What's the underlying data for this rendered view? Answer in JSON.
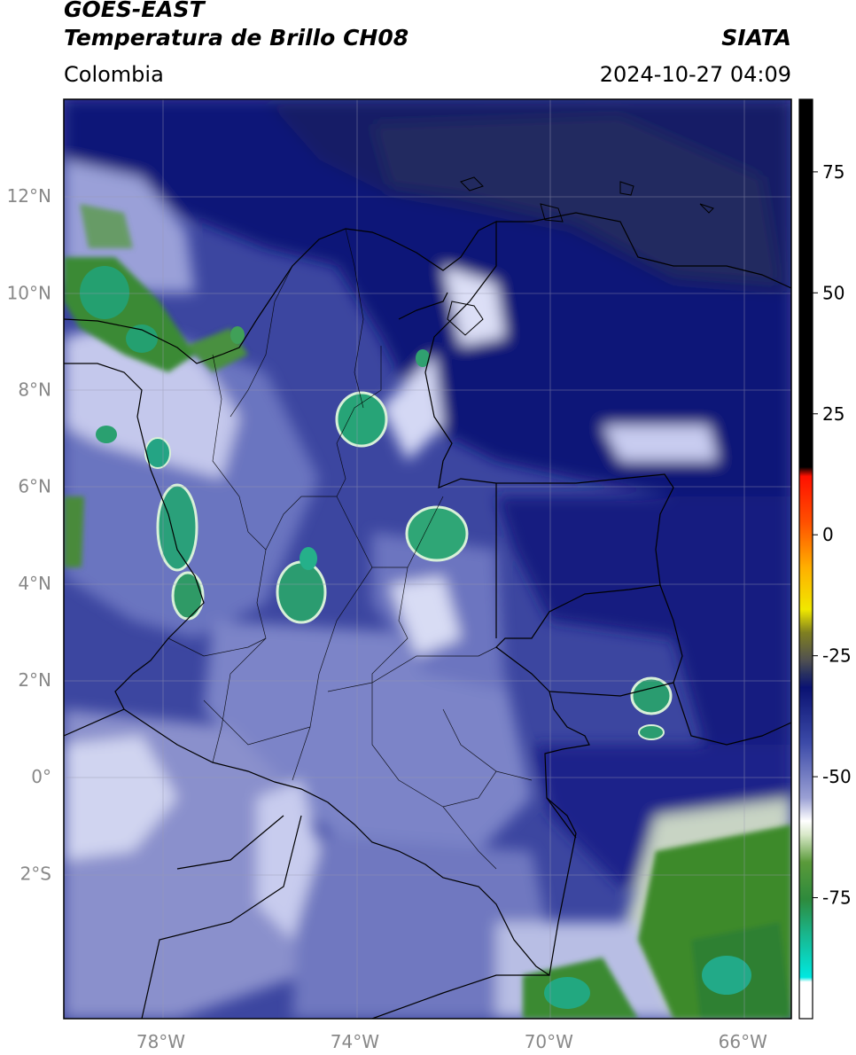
{
  "header": {
    "satellite": "GOES-EAST",
    "product": "Temperatura de Brillo CH08",
    "brand": "SIATA",
    "region": "Colombia",
    "datetime": "2024-10-27 04:09"
  },
  "map": {
    "lon_range": [
      -80,
      -65
    ],
    "lat_range": [
      -5,
      14
    ],
    "lat_ticks": [
      {
        "value": 12,
        "label": "12°N"
      },
      {
        "value": 10,
        "label": "10°N"
      },
      {
        "value": 8,
        "label": "8°N"
      },
      {
        "value": 6,
        "label": "6°N"
      },
      {
        "value": 4,
        "label": "4°N"
      },
      {
        "value": 2,
        "label": "2°N"
      },
      {
        "value": 0,
        "label": "0°"
      },
      {
        "value": -2,
        "label": "2°S"
      }
    ],
    "lon_ticks": [
      {
        "value": -78,
        "label": "78°W"
      },
      {
        "value": -74,
        "label": "74°W"
      },
      {
        "value": -70,
        "label": "70°W"
      },
      {
        "value": -66,
        "label": "66°W"
      }
    ],
    "grid": true
  },
  "colorbar": {
    "range": [
      -100,
      90
    ],
    "ticks": [
      {
        "value": 75,
        "label": "75"
      },
      {
        "value": 50,
        "label": "50"
      },
      {
        "value": 25,
        "label": "25"
      },
      {
        "value": 0,
        "label": "0"
      },
      {
        "value": -25,
        "label": "-25"
      },
      {
        "value": -50,
        "label": "-50"
      },
      {
        "value": -75,
        "label": "-75"
      }
    ],
    "colors": {
      "warm": "#000000",
      "red": "#ff2000",
      "orange": "#ff9000",
      "yellow": "#f0e800",
      "olive": "#807020",
      "gray": "#404040",
      "navy": "#0a1272",
      "blue": "#3c4aa8",
      "lavender": "#b8bce0",
      "white": "#ffffff",
      "green": "#3c8a28",
      "teal": "#10c8a8",
      "cyan": "#00e0e0"
    }
  }
}
